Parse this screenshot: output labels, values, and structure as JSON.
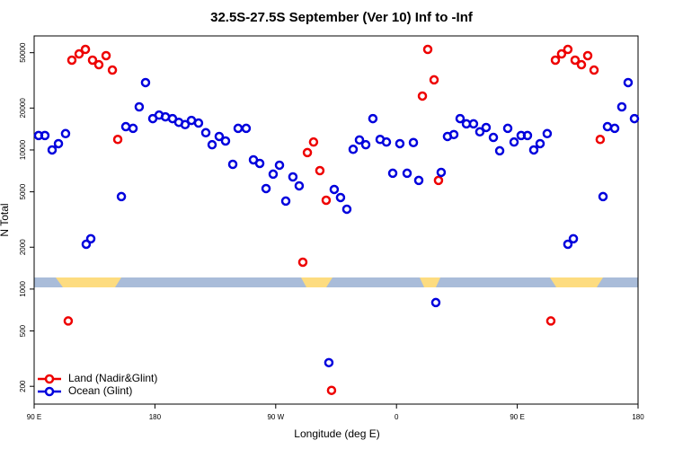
{
  "chart_data": {
    "type": "scatter",
    "title": "32.5S-27.5S September (Ver 10)   Inf to -Inf",
    "x_label": "Longitude (deg E)",
    "y_label": "N Total",
    "log_y": true,
    "legend": "lower left",
    "xlim": [
      90,
      540
    ],
    "xticks": [
      {
        "value": 90,
        "label": "90 E"
      },
      180,
      {
        "value": 270,
        "label": "90 W"
      },
      {
        "value": 360,
        "label": "0"
      },
      {
        "value": 450,
        "label": "90 E"
      },
      {
        "value": 540,
        "label": "180"
      }
    ],
    "ylim": [
      149,
      66000
    ],
    "yticks": [
      200,
      500,
      1000,
      2000,
      5000,
      10000,
      20000,
      50000
    ],
    "series": [
      {
        "name": "Land (Nadir&Glint)",
        "color": "#ee0000",
        "x": [
          115.4,
          118.1,
          123.5,
          128.2,
          133.5,
          138.2,
          143.6,
          148.3,
          152.3,
          290.2,
          293.6,
          298.2,
          302.9,
          307.6,
          311.6,
          379.3,
          383.3,
          388,
          391.3,
          475,
          478.4,
          483,
          487.7,
          493.1,
          497.8,
          502.5,
          507.2,
          511.8
        ],
        "values": [
          590,
          44200,
          49000,
          52800,
          44200,
          41000,
          47600,
          37500,
          11900,
          1560,
          9570,
          11400,
          7100,
          4350,
          187,
          24400,
          52800,
          31900,
          6040,
          590,
          44200,
          49000,
          52800,
          44200,
          41000,
          47600,
          37500,
          11900
        ]
      },
      {
        "name": "Ocean (Glint)",
        "color": "#0000dd",
        "x": [
          93.3,
          98,
          103.4,
          108.1,
          113.4,
          128.8,
          132.2,
          155,
          158.3,
          163.7,
          168.3,
          173,
          178.4,
          183.1,
          187.8,
          193.1,
          197.8,
          202.5,
          207.2,
          212.5,
          217.9,
          222.6,
          227.9,
          232.6,
          238,
          242,
          248,
          253.4,
          258.1,
          262.8,
          268.1,
          272.8,
          277.5,
          282.8,
          287.5,
          309.6,
          313.6,
          318.3,
          323,
          327.7,
          332.4,
          337.1,
          342.4,
          347.8,
          352.5,
          357.2,
          362.5,
          367.9,
          372.6,
          376.6,
          389.3,
          393.3,
          398,
          402.7,
          407.4,
          412.1,
          417.4,
          422.1,
          426.8,
          432.2,
          436.9,
          442.9,
          447.6,
          452.9,
          457.6,
          462.3,
          467,
          472.3,
          487.7,
          491.8,
          513.9,
          517.2,
          522.6,
          527.9,
          532.6,
          537.3
        ],
        "values": [
          12700,
          12700,
          10000,
          11100,
          13100,
          2100,
          2300,
          4620,
          14700,
          14300,
          20400,
          30500,
          16800,
          17800,
          17300,
          16800,
          15800,
          15200,
          16300,
          15600,
          13300,
          10900,
          12500,
          11600,
          7880,
          14300,
          14300,
          8490,
          8000,
          5280,
          6700,
          7770,
          4290,
          6400,
          5520,
          296,
          5200,
          4550,
          3750,
          10100,
          11800,
          10900,
          16800,
          11900,
          11400,
          6800,
          11100,
          6800,
          11300,
          6040,
          800,
          6900,
          12500,
          12900,
          16800,
          15400,
          15400,
          13500,
          14500,
          12300,
          9860,
          14300,
          11400,
          12700,
          12700,
          10000,
          11100,
          13100,
          2100,
          2300,
          4620,
          14700,
          14300,
          20400,
          30500,
          16800
        ]
      }
    ]
  }
}
